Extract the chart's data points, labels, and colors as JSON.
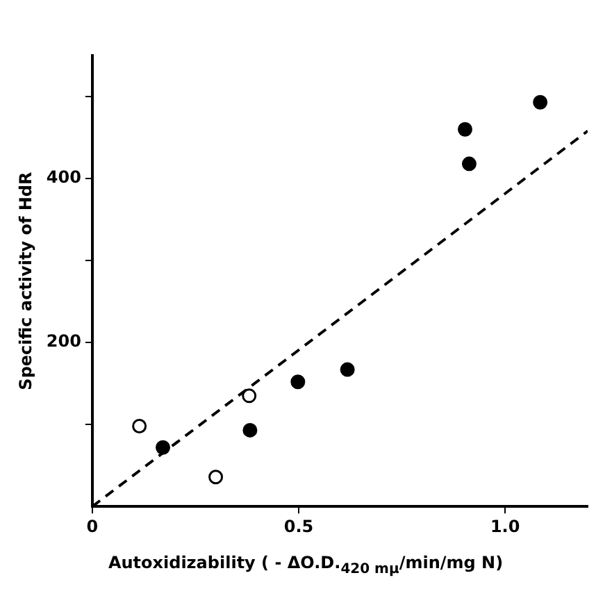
{
  "chart_data": {
    "type": "scatter",
    "xlabel": "Autoxidizability ( - ΔO.D.$_{420 mμ}$/min/mg N)",
    "ylabel": "Specific activity of HdR",
    "xlim": [
      0,
      1.2
    ],
    "ylim": [
      0,
      550
    ],
    "xticks": [
      0,
      0.5,
      {
        "value": 1,
        "label": "1.0"
      }
    ],
    "yticks": [
      {
        "value": 100,
        "label": null
      },
      200,
      {
        "value": 300,
        "label": null
      },
      400,
      {
        "value": 500,
        "label": null
      }
    ],
    "grid": false,
    "legend": false,
    "marker": "circle",
    "series": [
      {
        "color": "#000000",
        "x": [
          0.171,
          0.382,
          0.498,
          0.618,
          0.903,
          0.913,
          1.085
        ],
        "values": [
          72,
          93,
          152,
          167,
          460,
          418,
          493
        ]
      },
      {
        "color": "#000000",
        "x": [
          0.114,
          0.299,
          0.38
        ],
        "values": [
          98,
          36,
          135
        ]
      },
      {
        "type": "line",
        "color": "#000000",
        "line_style": "dashed",
        "marker": "none",
        "x": [
          0,
          1.2
        ],
        "values": [
          0,
          458
        ]
      }
    ]
  }
}
